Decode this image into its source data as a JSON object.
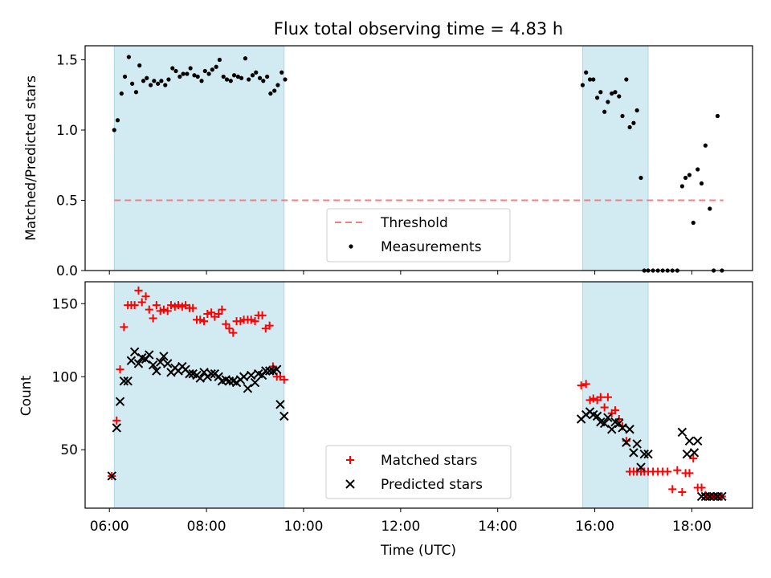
{
  "chart_data": [
    {
      "type": "scatter",
      "panel": "top",
      "title": "Flux total observing time = 4.83 h",
      "xlabel": "",
      "ylabel": "Matched/Predicted stars",
      "xlim": [
        5.5,
        19.25
      ],
      "ylim": [
        0,
        1.6
      ],
      "yticks": [
        0.0,
        0.5,
        1.0,
        1.5
      ],
      "yticklabels": [
        "0.0",
        "0.5",
        "1.0",
        "1.5"
      ],
      "shaded_intervals": [
        [
          6.1,
          9.6
        ],
        [
          15.75,
          17.1
        ]
      ],
      "shade_color": "#add8e6",
      "threshold": {
        "name": "Threshold",
        "value": 0.5,
        "x": [
          6.1,
          18.65
        ],
        "color": "#f08080"
      },
      "legend": {
        "location": "lower center",
        "entries": [
          "Threshold",
          "Measurements"
        ]
      },
      "series": [
        {
          "name": "Measurements",
          "marker": "dot",
          "color": "#000000",
          "x": [
            6.1,
            6.17,
            6.25,
            6.32,
            6.4,
            6.47,
            6.55,
            6.62,
            6.7,
            6.77,
            6.85,
            6.92,
            7.0,
            7.07,
            7.15,
            7.22,
            7.3,
            7.37,
            7.45,
            7.52,
            7.6,
            7.67,
            7.75,
            7.82,
            7.9,
            7.97,
            8.05,
            8.12,
            8.2,
            8.27,
            8.35,
            8.42,
            8.5,
            8.57,
            8.65,
            8.72,
            8.8,
            8.87,
            8.95,
            9.02,
            9.1,
            9.17,
            9.25,
            9.32,
            9.4,
            9.47,
            9.55,
            9.62,
            15.75,
            15.82,
            15.9,
            15.97,
            16.05,
            16.12,
            16.2,
            16.27,
            16.35,
            16.42,
            16.5,
            16.57,
            16.65,
            16.72,
            16.8,
            16.87,
            16.95,
            17.02,
            17.1,
            17.2,
            17.3,
            17.4,
            17.5,
            17.6,
            17.7,
            17.8,
            17.87,
            17.95,
            18.03,
            18.12,
            18.2,
            18.28,
            18.37,
            18.45,
            18.53,
            18.62
          ],
          "y": [
            1.0,
            1.07,
            1.26,
            1.38,
            1.52,
            1.33,
            1.27,
            1.46,
            1.35,
            1.37,
            1.32,
            1.35,
            1.33,
            1.35,
            1.32,
            1.36,
            1.44,
            1.42,
            1.38,
            1.4,
            1.4,
            1.44,
            1.39,
            1.38,
            1.35,
            1.42,
            1.4,
            1.43,
            1.45,
            1.5,
            1.38,
            1.36,
            1.35,
            1.39,
            1.38,
            1.37,
            1.51,
            1.36,
            1.39,
            1.41,
            1.37,
            1.35,
            1.38,
            1.26,
            1.28,
            1.32,
            1.41,
            1.36,
            1.32,
            1.41,
            1.36,
            1.36,
            1.23,
            1.27,
            1.13,
            1.2,
            1.26,
            1.27,
            1.24,
            1.1,
            1.36,
            1.02,
            1.05,
            1.14,
            0.66,
            0.0,
            0.0,
            0.0,
            0.0,
            0.0,
            0.0,
            0.0,
            0.0,
            0.6,
            0.66,
            0.68,
            0.34,
            0.72,
            0.62,
            0.89,
            0.44,
            0.0,
            1.1,
            0.0
          ]
        }
      ]
    },
    {
      "type": "scatter",
      "panel": "bottom",
      "title": "",
      "xlabel": "Time (UTC)",
      "ylabel": "Count",
      "xlim": [
        5.5,
        19.25
      ],
      "ylim": [
        10,
        165
      ],
      "xticks": [
        6,
        8,
        10,
        12,
        14,
        16,
        18
      ],
      "xticklabels": [
        "06:00",
        "08:00",
        "10:00",
        "12:00",
        "14:00",
        "16:00",
        "18:00"
      ],
      "yticks": [
        50,
        100,
        150
      ],
      "yticklabels": [
        "50",
        "100",
        "150"
      ],
      "shaded_intervals": [
        [
          6.1,
          9.6
        ],
        [
          15.75,
          17.1
        ]
      ],
      "shade_color": "#add8e6",
      "legend": {
        "location": "lower center",
        "entries": [
          "Matched stars",
          "Predicted stars"
        ]
      },
      "series": [
        {
          "name": "Matched stars",
          "marker": "plus",
          "color": "#ff0000",
          "x": [
            6.05,
            6.15,
            6.22,
            6.3,
            6.38,
            6.45,
            6.52,
            6.6,
            6.67,
            6.75,
            6.82,
            6.9,
            6.97,
            7.05,
            7.12,
            7.2,
            7.27,
            7.35,
            7.42,
            7.5,
            7.57,
            7.65,
            7.72,
            7.8,
            7.87,
            7.95,
            8.02,
            8.1,
            8.17,
            8.25,
            8.32,
            8.4,
            8.47,
            8.55,
            8.62,
            8.7,
            8.77,
            8.85,
            8.92,
            9.0,
            9.07,
            9.15,
            9.22,
            9.3,
            9.37,
            9.45,
            9.52,
            9.6,
            15.72,
            15.82,
            15.9,
            15.97,
            16.05,
            16.12,
            16.2,
            16.27,
            16.35,
            16.42,
            16.5,
            16.57,
            16.65,
            16.72,
            16.8,
            16.87,
            16.95,
            17.02,
            17.1,
            17.2,
            17.3,
            17.4,
            17.5,
            17.6,
            17.7,
            17.8,
            17.87,
            17.95,
            18.03,
            18.12,
            18.2,
            18.28,
            18.37,
            18.45,
            18.53,
            18.62
          ],
          "y": [
            32,
            70,
            105,
            134,
            149,
            149,
            149,
            159,
            151,
            155,
            146,
            140,
            149,
            145,
            146,
            145,
            149,
            148,
            149,
            148,
            149,
            147,
            147,
            139,
            139,
            138,
            143,
            144,
            141,
            143,
            146,
            136,
            133,
            130,
            138,
            138,
            139,
            139,
            139,
            138,
            142,
            142,
            133,
            135,
            107,
            100,
            100,
            98,
            94,
            95,
            84,
            85,
            84,
            86,
            79,
            86,
            75,
            77,
            71,
            66,
            56,
            35,
            35,
            35,
            35,
            35,
            35,
            35,
            35,
            35,
            35,
            23,
            36,
            21,
            34,
            34,
            44,
            24,
            24,
            19,
            18,
            18,
            18,
            18
          ]
        },
        {
          "name": "Predicted stars",
          "marker": "x",
          "color": "#000000",
          "x": [
            6.05,
            6.15,
            6.22,
            6.3,
            6.38,
            6.45,
            6.52,
            6.6,
            6.67,
            6.75,
            6.82,
            6.9,
            6.97,
            7.05,
            7.12,
            7.2,
            7.27,
            7.35,
            7.42,
            7.5,
            7.57,
            7.65,
            7.72,
            7.8,
            7.87,
            7.95,
            8.02,
            8.1,
            8.17,
            8.25,
            8.32,
            8.4,
            8.47,
            8.55,
            8.62,
            8.7,
            8.77,
            8.85,
            8.92,
            9.0,
            9.07,
            9.15,
            9.22,
            9.3,
            9.37,
            9.45,
            9.52,
            9.6,
            15.72,
            15.82,
            15.9,
            15.97,
            16.05,
            16.12,
            16.2,
            16.27,
            16.35,
            16.42,
            16.5,
            16.57,
            16.65,
            16.72,
            16.8,
            16.87,
            16.95,
            17.02,
            17.1,
            17.8,
            17.9,
            17.95,
            18.05,
            18.12,
            18.2,
            18.28,
            18.37,
            18.45,
            18.53,
            18.62
          ],
          "y": [
            32,
            65,
            83,
            97,
            97,
            111,
            117,
            109,
            113,
            112,
            115,
            108,
            104,
            110,
            114,
            109,
            103,
            106,
            104,
            107,
            105,
            102,
            102,
            101,
            99,
            103,
            100,
            102,
            102,
            100,
            97,
            98,
            97,
            97,
            96,
            98,
            100,
            92,
            101,
            96,
            102,
            101,
            104,
            104,
            104,
            105,
            81,
            73,
            71,
            74,
            76,
            74,
            73,
            69,
            68,
            72,
            64,
            69,
            68,
            65,
            55,
            64,
            48,
            54,
            38,
            47,
            47,
            62,
            47,
            56,
            48,
            56,
            18,
            18,
            18,
            18,
            18,
            18
          ]
        }
      ]
    }
  ]
}
